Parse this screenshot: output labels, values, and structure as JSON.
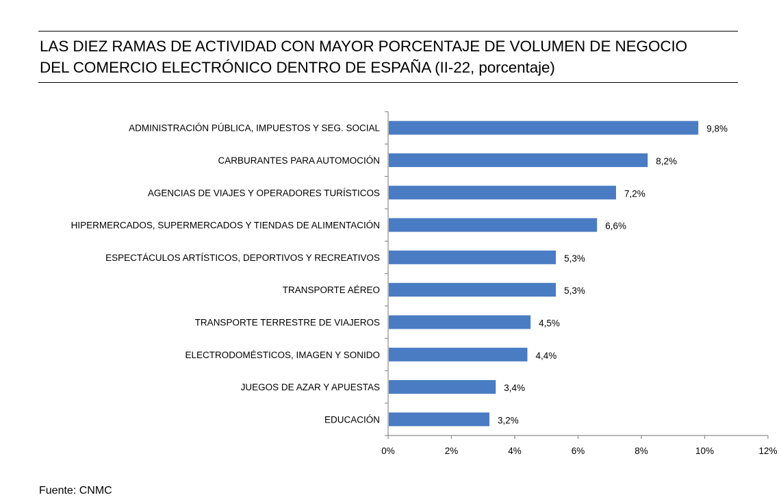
{
  "title_lines": [
    "LAS DIEZ RAMAS DE ACTIVIDAD CON MAYOR PORCENTAJE DE VOLUMEN DE NEGOCIO",
    "DEL COMERCIO ELECTRÓNICO DENTRO DE ESPAÑA (II-22, porcentaje)"
  ],
  "source": "Fuente: CNMC",
  "colors": {
    "bar": "#4a7cc3"
  },
  "chart_data": {
    "type": "bar",
    "orientation": "horizontal",
    "title": "LAS DIEZ RAMAS DE ACTIVIDAD CON MAYOR PORCENTAJE DE VOLUMEN DE NEGOCIO DEL COMERCIO ELECTRÓNICO DENTRO DE ESPAÑA (II-22, porcentaje)",
    "categories": [
      "ADMINISTRACIÓN PÚBLICA, IMPUESTOS Y SEG. SOCIAL",
      "CARBURANTES PARA AUTOMOCIÓN",
      "AGENCIAS DE VIAJES Y OPERADORES TURÍSTICOS",
      "HIPERMERCADOS, SUPERMERCADOS Y TIENDAS DE ALIMENTACIÓN",
      "ESPECTÁCULOS ARTÍSTICOS, DEPORTIVOS Y RECREATIVOS",
      "TRANSPORTE AÉREO",
      "TRANSPORTE TERRESTRE DE VIAJEROS",
      "ELECTRODOMÉSTICOS,  IMAGEN Y SONIDO",
      "JUEGOS DE AZAR Y APUESTAS",
      "EDUCACIÓN"
    ],
    "values": [
      9.8,
      8.2,
      7.2,
      6.6,
      5.3,
      5.3,
      4.5,
      4.4,
      3.4,
      3.2
    ],
    "value_labels": [
      "9,8%",
      "8,2%",
      "7,2%",
      "6,6%",
      "5,3%",
      "5,3%",
      "4,5%",
      "4,4%",
      "3,4%",
      "3,2%"
    ],
    "xlim": [
      0,
      12
    ],
    "xticks": [
      0,
      2,
      4,
      6,
      8,
      10,
      12
    ],
    "xtick_labels": [
      "0%",
      "2%",
      "4%",
      "6%",
      "8%",
      "10%",
      "12%"
    ],
    "grid": false,
    "legend": "none"
  }
}
